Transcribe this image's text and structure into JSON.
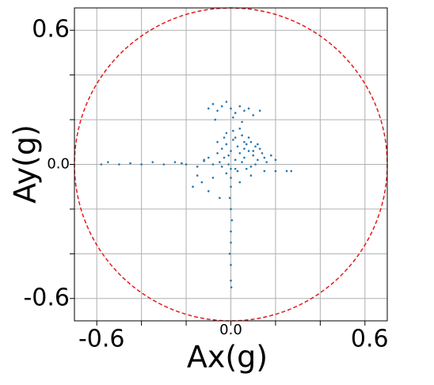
{
  "chart_data": {
    "type": "scatter",
    "x_label": "Ax(g)",
    "y_label": "Ay(g)",
    "xlim": [
      -0.7,
      0.7
    ],
    "ylim": [
      -0.7,
      0.7
    ],
    "xticks": [
      {
        "value": -0.6,
        "label": "-0.6"
      },
      {
        "value": -0.4,
        "label": null
      },
      {
        "value": -0.2,
        "label": null
      },
      {
        "value": 0,
        "label": "0.0"
      },
      {
        "value": 0.2,
        "label": null
      },
      {
        "value": 0.4,
        "label": null
      },
      {
        "value": 0.6,
        "label": "0.6"
      }
    ],
    "yticks": [
      {
        "value": -0.6,
        "label": "-0.6"
      },
      {
        "value": -0.4,
        "label": null
      },
      {
        "value": -0.2,
        "label": null
      },
      {
        "value": 0,
        "label": "0.0"
      },
      {
        "value": 0.2,
        "label": null
      },
      {
        "value": 0.4,
        "label": null
      },
      {
        "value": 0.6,
        "label": "0.6"
      }
    ],
    "grid": true,
    "circle_radius": 0.7,
    "circle_color": "#e31a1c",
    "series": [
      {
        "color": "#1f77b4",
        "x": [
          -0.1,
          -0.08,
          -0.06,
          -0.04,
          -0.02,
          0.0,
          0.02,
          0.04,
          0.06,
          0.08,
          0.1,
          0.13,
          -0.07,
          0.01,
          0.05,
          -0.58,
          -0.55,
          -0.5,
          -0.45,
          -0.4,
          -0.35,
          -0.3,
          -0.25,
          -0.2,
          -0.15,
          0.15,
          0.2,
          0.25,
          0.27,
          -0.12,
          -0.22,
          0.0,
          -0.005,
          0.0,
          0.005,
          0.0,
          0.0,
          -0.005,
          0.0,
          0.0,
          0.002,
          -0.12,
          -0.1,
          -0.08,
          -0.06,
          -0.05,
          -0.04,
          -0.03,
          -0.02,
          -0.01,
          0.0,
          0.01,
          0.02,
          0.03,
          0.04,
          0.05,
          0.06,
          0.07,
          0.08,
          0.09,
          0.1,
          0.11,
          0.12,
          0.13,
          0.14,
          0.15,
          0.16,
          0.18,
          0.2,
          -0.06,
          -0.02,
          0.02,
          0.04,
          0.06,
          0.08,
          0.1,
          0.12,
          0.0,
          -0.04,
          0.03,
          0.07,
          0.11,
          0.01,
          -0.03,
          0.05,
          0.09,
          -0.01,
          0.02,
          0.06,
          -0.15,
          -0.17,
          -0.13,
          -0.1,
          -0.08,
          -0.05,
          0.04,
          0.09,
          -0.02,
          0.0
        ],
        "y": [
          0.25,
          0.27,
          0.24,
          0.26,
          0.28,
          0.25,
          0.23,
          0.26,
          0.24,
          0.25,
          0.22,
          0.24,
          0.2,
          0.21,
          0.19,
          0.0,
          0.01,
          0.0,
          0.005,
          0.0,
          0.01,
          0.0,
          0.01,
          0.0,
          -0.01,
          -0.03,
          -0.03,
          -0.03,
          -0.03,
          0.015,
          0.005,
          -0.1,
          -0.15,
          -0.2,
          -0.25,
          -0.3,
          -0.35,
          -0.4,
          -0.45,
          -0.52,
          -0.55,
          0.02,
          0.03,
          0.0,
          0.05,
          0.01,
          0.07,
          0.03,
          0.09,
          0.04,
          0.06,
          0.11,
          0.02,
          0.08,
          0.05,
          0.13,
          0.03,
          0.09,
          0.06,
          0.1,
          0.04,
          0.08,
          0.02,
          0.07,
          0.05,
          0.03,
          0.01,
          0.04,
          0.02,
          0.1,
          0.14,
          0.12,
          0.16,
          0.1,
          0.12,
          0.06,
          0.09,
          -0.02,
          -0.01,
          -0.03,
          -0.02,
          0.0,
          0.15,
          0.12,
          0.01,
          -0.01,
          0.0,
          -0.02,
          0.07,
          -0.05,
          -0.1,
          -0.08,
          -0.12,
          -0.06,
          -0.15,
          -0.08,
          -0.05,
          -0.04,
          -0.06
        ]
      }
    ]
  }
}
